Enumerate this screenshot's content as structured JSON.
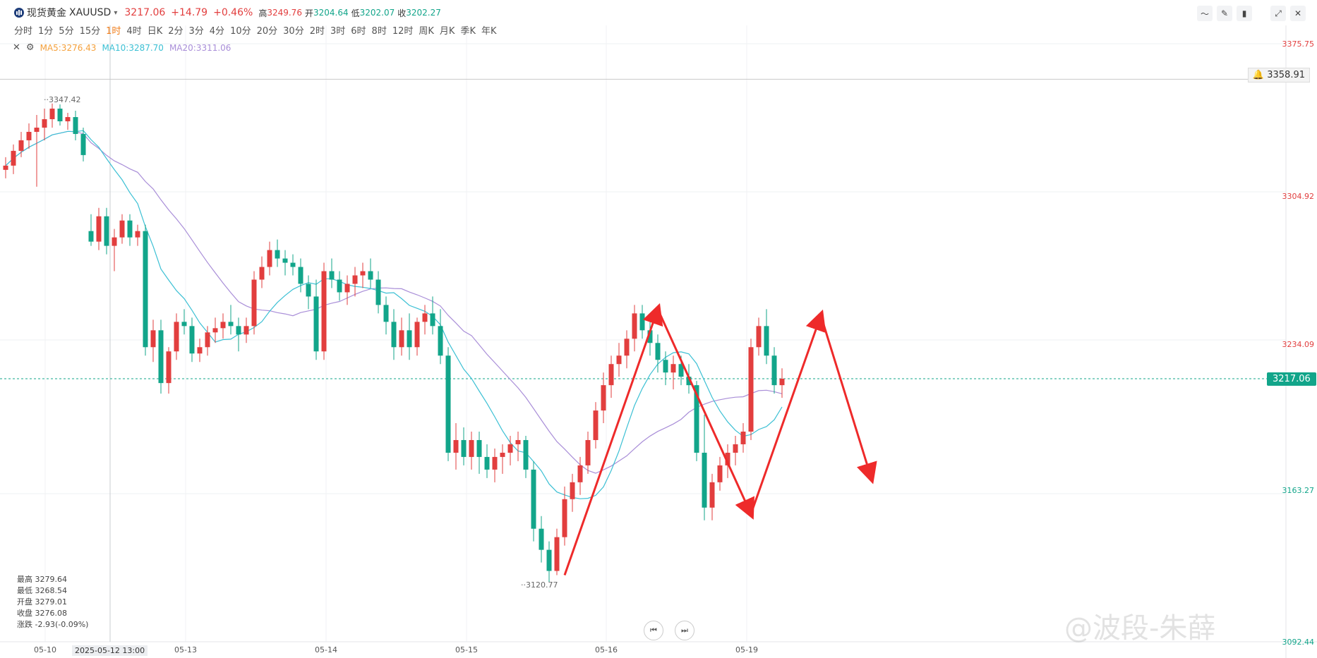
{
  "header": {
    "symbol_name": "现货黄金",
    "symbol_code": "XAUUSD",
    "last_price": "3217.06",
    "change": "+14.79",
    "change_pct": "+0.46%",
    "high_label": "高",
    "high_value": "3249.76",
    "open_label": "开",
    "open_value": "3204.64",
    "low_label": "低",
    "low_value": "3202.07",
    "close_label": "收",
    "close_value": "3202.27",
    "toolbar_icons": [
      "line-style-icon",
      "draw-icon",
      "candles-icon",
      "fullscreen-icon",
      "close-icon"
    ]
  },
  "periods": [
    "分时",
    "1分",
    "5分",
    "15分",
    "1时",
    "4时",
    "日K",
    "2分",
    "3分",
    "4分",
    "10分",
    "20分",
    "30分",
    "2时",
    "3时",
    "6时",
    "8时",
    "12时",
    "周K",
    "月K",
    "季K",
    "年K"
  ],
  "active_period": "1时",
  "indicators": {
    "ma5": "MA5:3276.43",
    "ma10": "MA10:3287.70",
    "ma20": "MA20:3311.06"
  },
  "price_axis": {
    "top": "3375.75",
    "alert_price": "3358.91",
    "l1": "3304.92",
    "l2": "3234.09",
    "current": "3217.06",
    "l3": "3163.27",
    "bottom": "3092.44"
  },
  "annotations": {
    "high_mark": "3347.42",
    "low_mark": "3120.77"
  },
  "hover": {
    "time": "2025-05-12 13:00",
    "high": "最高 3279.64",
    "low": "最低 3268.54",
    "open": "开盘 3279.01",
    "close": "收盘 3276.08",
    "change": "涨跌 -2.93(-0.09%)"
  },
  "x_axis": [
    "05-10",
    "05-13",
    "05-14",
    "05-15",
    "05-16",
    "05-19"
  ],
  "watermark": "@波段-朱薛",
  "colors": {
    "up": "#e23e3e",
    "down": "#12a58a",
    "ma5": "#f5a13c",
    "ma10": "#3cc0d4",
    "ma20": "#a98ed8",
    "arrow": "#ee2a2a"
  },
  "chart_data": {
    "type": "candlestick",
    "title": "现货黄金 XAUUSD 1时",
    "x_labels": [
      "05-10",
      "05-13",
      "05-14",
      "05-15",
      "05-16",
      "05-19"
    ],
    "ylim": [
      3092.44,
      3375.75
    ],
    "candles": [
      [
        3316,
        3322,
        3312,
        3318
      ],
      [
        3318,
        3328,
        3314,
        3325
      ],
      [
        3325,
        3334,
        3322,
        3330
      ],
      [
        3330,
        3338,
        3326,
        3334
      ],
      [
        3334,
        3342,
        3308,
        3336
      ],
      [
        3336,
        3345,
        3330,
        3340
      ],
      [
        3340,
        3347.42,
        3336,
        3345
      ],
      [
        3345,
        3347,
        3337,
        3339
      ],
      [
        3339,
        3343,
        3335,
        3341
      ],
      [
        3341,
        3344,
        3330,
        3333
      ],
      [
        3333,
        3336,
        3320,
        3323
      ],
      [
        3287,
        3295,
        3280,
        3282
      ],
      [
        3282,
        3298,
        3278,
        3294
      ],
      [
        3294,
        3298,
        3276,
        3280
      ],
      [
        3280,
        3288,
        3268,
        3284
      ],
      [
        3284,
        3295,
        3281,
        3292
      ],
      [
        3292,
        3295,
        3280,
        3284
      ],
      [
        3284,
        3290,
        3280,
        3287
      ],
      [
        3287,
        3290,
        3228,
        3232
      ],
      [
        3232,
        3245,
        3225,
        3240
      ],
      [
        3240,
        3245,
        3210,
        3215
      ],
      [
        3215,
        3232,
        3210,
        3230
      ],
      [
        3230,
        3248,
        3226,
        3244
      ],
      [
        3244,
        3250,
        3238,
        3242
      ],
      [
        3242,
        3246,
        3225,
        3229
      ],
      [
        3229,
        3236,
        3225,
        3232
      ],
      [
        3232,
        3242,
        3228,
        3239
      ],
      [
        3239,
        3246,
        3234,
        3241
      ],
      [
        3241,
        3248,
        3236,
        3244
      ],
      [
        3244,
        3252,
        3238,
        3242
      ],
      [
        3242,
        3246,
        3230,
        3238
      ],
      [
        3238,
        3246,
        3234,
        3242
      ],
      [
        3242,
        3268,
        3238,
        3264
      ],
      [
        3264,
        3275,
        3260,
        3270
      ],
      [
        3270,
        3282,
        3266,
        3278
      ],
      [
        3278,
        3283,
        3270,
        3274
      ],
      [
        3274,
        3278,
        3266,
        3272
      ],
      [
        3272,
        3276,
        3266,
        3270
      ],
      [
        3270,
        3274,
        3258,
        3262
      ],
      [
        3262,
        3266,
        3250,
        3256
      ],
      [
        3256,
        3264,
        3226,
        3230
      ],
      [
        3230,
        3272,
        3226,
        3268
      ],
      [
        3268,
        3274,
        3260,
        3264
      ],
      [
        3264,
        3268,
        3254,
        3258
      ],
      [
        3258,
        3266,
        3252,
        3262
      ],
      [
        3262,
        3270,
        3256,
        3266
      ],
      [
        3266,
        3272,
        3260,
        3268
      ],
      [
        3268,
        3274,
        3260,
        3264
      ],
      [
        3264,
        3268,
        3248,
        3252
      ],
      [
        3252,
        3256,
        3238,
        3244
      ],
      [
        3244,
        3250,
        3226,
        3232
      ],
      [
        3232,
        3246,
        3228,
        3240
      ],
      [
        3240,
        3248,
        3226,
        3232
      ],
      [
        3232,
        3246,
        3228,
        3244
      ],
      [
        3244,
        3252,
        3238,
        3248
      ],
      [
        3248,
        3256,
        3238,
        3242
      ],
      [
        3242,
        3250,
        3224,
        3228
      ],
      [
        3228,
        3232,
        3178,
        3182
      ],
      [
        3182,
        3196,
        3174,
        3188
      ],
      [
        3188,
        3194,
        3176,
        3180
      ],
      [
        3180,
        3192,
        3174,
        3188
      ],
      [
        3188,
        3192,
        3172,
        3180
      ],
      [
        3180,
        3186,
        3170,
        3174
      ],
      [
        3174,
        3184,
        3168,
        3180
      ],
      [
        3180,
        3186,
        3172,
        3182
      ],
      [
        3182,
        3190,
        3176,
        3186
      ],
      [
        3186,
        3192,
        3178,
        3188
      ],
      [
        3188,
        3190,
        3170,
        3174
      ],
      [
        3174,
        3178,
        3140,
        3146
      ],
      [
        3146,
        3152,
        3130,
        3136
      ],
      [
        3136,
        3140,
        3120.77,
        3126
      ],
      [
        3126,
        3146,
        3124,
        3142
      ],
      [
        3142,
        3166,
        3138,
        3160
      ],
      [
        3160,
        3172,
        3154,
        3168
      ],
      [
        3168,
        3180,
        3162,
        3176
      ],
      [
        3176,
        3192,
        3172,
        3188
      ],
      [
        3188,
        3206,
        3184,
        3202
      ],
      [
        3202,
        3220,
        3196,
        3214
      ],
      [
        3214,
        3228,
        3208,
        3224
      ],
      [
        3224,
        3234,
        3218,
        3228
      ],
      [
        3228,
        3240,
        3222,
        3236
      ],
      [
        3236,
        3252,
        3230,
        3248
      ],
      [
        3248,
        3252,
        3236,
        3240
      ],
      [
        3240,
        3248,
        3228,
        3234
      ],
      [
        3234,
        3238,
        3220,
        3226
      ],
      [
        3226,
        3230,
        3214,
        3220
      ],
      [
        3220,
        3228,
        3212,
        3224
      ],
      [
        3224,
        3228,
        3214,
        3218
      ],
      [
        3218,
        3224,
        3210,
        3214
      ],
      [
        3214,
        3216,
        3178,
        3182
      ],
      [
        3182,
        3200,
        3150,
        3156
      ],
      [
        3156,
        3172,
        3150,
        3168
      ],
      [
        3168,
        3180,
        3164,
        3176
      ],
      [
        3176,
        3186,
        3170,
        3182
      ],
      [
        3182,
        3190,
        3176,
        3186
      ],
      [
        3186,
        3196,
        3182,
        3192
      ],
      [
        3192,
        3236,
        3188,
        3232
      ],
      [
        3232,
        3246,
        3228,
        3242
      ],
      [
        3242,
        3250,
        3224,
        3228
      ],
      [
        3228,
        3232,
        3210,
        3214
      ],
      [
        3214,
        3222,
        3208,
        3217.06
      ]
    ],
    "ma_lines": {
      "ma10": "approx",
      "ma20": "approx"
    }
  }
}
